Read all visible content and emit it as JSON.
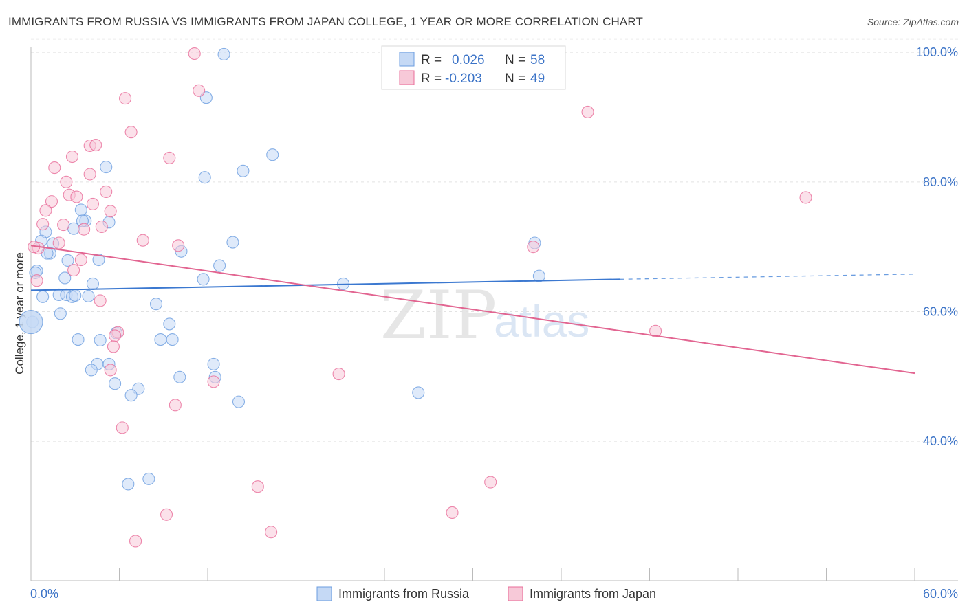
{
  "title": "IMMIGRANTS FROM RUSSIA VS IMMIGRANTS FROM JAPAN COLLEGE, 1 YEAR OR MORE CORRELATION CHART",
  "source": "Source: ZipAtlas.com",
  "watermark": {
    "zip": "ZIP",
    "atlas": "atlas"
  },
  "chart_data": {
    "type": "scatter",
    "title": "IMMIGRANTS FROM RUSSIA VS IMMIGRANTS FROM JAPAN COLLEGE, 1 YEAR OR MORE CORRELATION CHART",
    "xlabel": "",
    "ylabel": "College, 1 year or more",
    "xlim": [
      0,
      60
    ],
    "ylim": [
      18.5,
      101.5
    ],
    "x_tick_labels": {
      "left": "0.0%",
      "right": "60.0%"
    },
    "y_ticks": [
      {
        "value": 40,
        "label": "40.0%"
      },
      {
        "value": 60,
        "label": "60.0%"
      },
      {
        "value": 80,
        "label": "80.0%"
      },
      {
        "value": 100,
        "label": "100.0%"
      }
    ],
    "legend": {
      "rows": [
        {
          "r_label": "R =",
          "r_value": "0.026",
          "n_label": "N =",
          "n_value": "58"
        },
        {
          "r_label": "R =",
          "r_value": "-0.203",
          "n_label": "N =",
          "n_value": "49"
        }
      ]
    },
    "series": [
      {
        "name": "Immigrants from Russia",
        "color": "#6b9de0",
        "fill": "#c5d9f5",
        "trend": {
          "x0": 0,
          "y0": 63.3,
          "x1": 40,
          "y1": 65.0,
          "x_dash_end": 60,
          "y_dash_end": 65.8
        },
        "points": [
          [
            13.1,
            99.7
          ],
          [
            11.9,
            93.0
          ],
          [
            16.4,
            84.2
          ],
          [
            5.1,
            82.3
          ],
          [
            14.4,
            81.7
          ],
          [
            11.8,
            80.7
          ],
          [
            3.4,
            75.7
          ],
          [
            3.7,
            74.0
          ],
          [
            3.5,
            74.0
          ],
          [
            5.3,
            73.8
          ],
          [
            2.9,
            72.8
          ],
          [
            1.0,
            72.3
          ],
          [
            0.7,
            70.9
          ],
          [
            1.5,
            70.5
          ],
          [
            13.7,
            70.7
          ],
          [
            34.2,
            70.6
          ],
          [
            10.2,
            69.3
          ],
          [
            1.3,
            69.0
          ],
          [
            1.1,
            69.0
          ],
          [
            2.5,
            67.9
          ],
          [
            4.6,
            68.0
          ],
          [
            12.8,
            67.1
          ],
          [
            0.4,
            66.3
          ],
          [
            0.3,
            66.0
          ],
          [
            2.3,
            65.2
          ],
          [
            11.7,
            65.0
          ],
          [
            34.5,
            65.5
          ],
          [
            21.2,
            64.3
          ],
          [
            4.2,
            64.3
          ],
          [
            0.8,
            62.3
          ],
          [
            1.9,
            62.6
          ],
          [
            2.4,
            62.6
          ],
          [
            2.8,
            62.3
          ],
          [
            3.0,
            62.5
          ],
          [
            3.9,
            62.4
          ],
          [
            8.5,
            61.2
          ],
          [
            2.0,
            59.7
          ],
          [
            9.4,
            58.1
          ],
          [
            0.1,
            58.4
          ],
          [
            5.8,
            56.7
          ],
          [
            3.2,
            55.7
          ],
          [
            4.7,
            55.6
          ],
          [
            8.8,
            55.7
          ],
          [
            9.6,
            55.7
          ],
          [
            4.5,
            51.9
          ],
          [
            5.3,
            51.9
          ],
          [
            12.4,
            51.9
          ],
          [
            4.1,
            51.0
          ],
          [
            12.5,
            49.9
          ],
          [
            10.1,
            49.9
          ],
          [
            5.7,
            48.9
          ],
          [
            7.3,
            48.1
          ],
          [
            6.8,
            47.1
          ],
          [
            26.3,
            47.5
          ],
          [
            14.1,
            46.1
          ],
          [
            8.0,
            34.2
          ],
          [
            6.6,
            33.4
          ],
          [
            0.0,
            58.4
          ]
        ]
      },
      {
        "name": "Immigrants from Japan",
        "color": "#e86c98",
        "fill": "#f7c9d8",
        "trend": {
          "x0": 0,
          "y0": 70.2,
          "x1": 60,
          "y1": 50.5
        },
        "points": [
          [
            11.1,
            99.8
          ],
          [
            11.4,
            94.1
          ],
          [
            6.4,
            92.9
          ],
          [
            37.8,
            90.8
          ],
          [
            6.8,
            87.7
          ],
          [
            4.0,
            85.6
          ],
          [
            4.4,
            85.7
          ],
          [
            2.8,
            83.9
          ],
          [
            9.4,
            83.7
          ],
          [
            1.6,
            82.2
          ],
          [
            4.0,
            81.2
          ],
          [
            2.4,
            80.0
          ],
          [
            5.1,
            78.5
          ],
          [
            2.6,
            78.0
          ],
          [
            3.1,
            77.7
          ],
          [
            52.6,
            77.6
          ],
          [
            1.4,
            77.0
          ],
          [
            4.2,
            76.6
          ],
          [
            1.0,
            75.6
          ],
          [
            5.4,
            75.5
          ],
          [
            0.8,
            73.5
          ],
          [
            2.2,
            73.4
          ],
          [
            4.8,
            73.1
          ],
          [
            3.6,
            72.7
          ],
          [
            1.9,
            70.6
          ],
          [
            7.6,
            71.0
          ],
          [
            10.0,
            70.2
          ],
          [
            34.1,
            70.0
          ],
          [
            0.5,
            69.8
          ],
          [
            3.4,
            68.0
          ],
          [
            2.9,
            66.4
          ],
          [
            0.4,
            64.8
          ],
          [
            4.7,
            61.7
          ],
          [
            5.9,
            56.8
          ],
          [
            5.7,
            56.3
          ],
          [
            42.4,
            57.0
          ],
          [
            5.6,
            54.6
          ],
          [
            5.4,
            51.0
          ],
          [
            20.9,
            50.4
          ],
          [
            12.4,
            49.2
          ],
          [
            9.8,
            45.6
          ],
          [
            6.2,
            42.1
          ],
          [
            31.2,
            33.7
          ],
          [
            15.4,
            33.0
          ],
          [
            28.6,
            29.0
          ],
          [
            9.2,
            28.7
          ],
          [
            16.3,
            26.0
          ],
          [
            7.1,
            24.6
          ],
          [
            0.2,
            70.0
          ]
        ]
      }
    ]
  }
}
